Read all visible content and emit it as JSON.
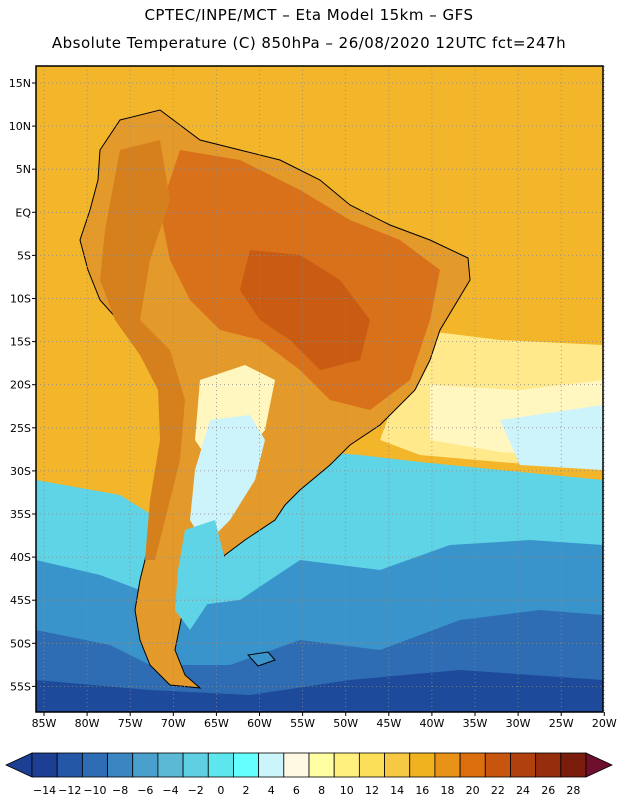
{
  "header": {
    "line1": "CPTEC/INPE/MCT –  Eta Model 15km – GFS",
    "line2": "Absolute Temperature (C) 850hPa – 26/08/2020 12UTC fct=247h"
  },
  "axes": {
    "lat_labels": [
      "15N",
      "10N",
      "5N",
      "EQ",
      "5S",
      "10S",
      "15S",
      "20S",
      "25S",
      "30S",
      "35S",
      "40S",
      "45S",
      "50S",
      "55S"
    ],
    "lon_labels": [
      "85W",
      "80W",
      "75W",
      "70W",
      "65W",
      "60W",
      "55W",
      "50W",
      "45W",
      "40W",
      "35W",
      "30W",
      "25W",
      "20W"
    ]
  },
  "colorbar": {
    "labels": [
      "-14",
      "-12",
      "-10",
      "-8",
      "-6",
      "-4",
      "-2",
      "0",
      "2",
      "4",
      "6",
      "8",
      "10",
      "12",
      "14",
      "16",
      "18",
      "20",
      "22",
      "24",
      "26",
      "28"
    ],
    "colors": [
      "#1c3f94",
      "#2457a6",
      "#2e6db3",
      "#3a86c0",
      "#4aa0cc",
      "#5cb9d6",
      "#5fd0e2",
      "#5ee6ee",
      "#66ffff",
      "#ccf5fb",
      "#fff8e3",
      "#fffea3",
      "#ffef7d",
      "#fbdf59",
      "#f7c844",
      "#f1b21f",
      "#e89217",
      "#dc6f0d",
      "#c7550d",
      "#b0400d",
      "#962d0c",
      "#7a1d0d"
    ]
  },
  "map_colors": {
    "ocean_warm": "#f3b52a",
    "ocean_hot": "#eda827",
    "land_hot": "#e49a2a",
    "land_very_hot": "#d9711a",
    "land_core": "#c95b12",
    "andes": "#d5801d",
    "ocean_cool": "#5ed4e6",
    "ocean_cold": "#3a94cc",
    "ocean_colder": "#2e6db3",
    "ocean_coldest": "#1e4a9b",
    "transition_pale": "#fff6c0",
    "transition_light": "#ffe98a",
    "light_cyan": "#cdf3fb",
    "coast": "#000000"
  }
}
